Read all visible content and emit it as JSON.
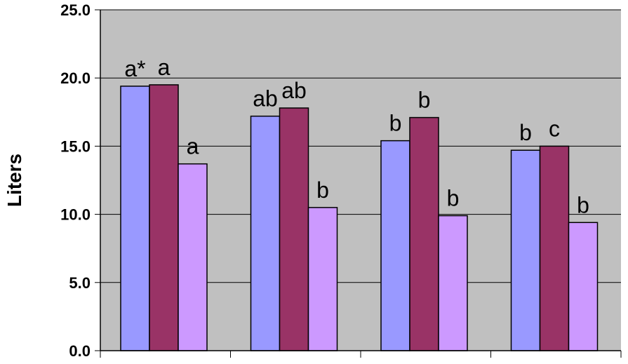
{
  "chart_data": {
    "type": "bar",
    "title": "",
    "xlabel": "",
    "ylabel": "Liters",
    "ylim": [
      0,
      25
    ],
    "yticks": [
      "0.0",
      "5.0",
      "10.0",
      "15.0",
      "20.0",
      "25.0"
    ],
    "grid": true,
    "legend": "none",
    "categories": [
      "",
      "",
      "",
      ""
    ],
    "series": [
      {
        "color": "#9999ff",
        "values": [
          19.4,
          17.2,
          15.4,
          14.7
        ],
        "labels": [
          "a*",
          "ab",
          "b",
          "b"
        ]
      },
      {
        "color": "#993366",
        "values": [
          19.5,
          17.8,
          17.1,
          15.0
        ],
        "labels": [
          "a",
          "ab",
          "b",
          "c"
        ]
      },
      {
        "color": "#cc99ff",
        "values": [
          13.7,
          10.5,
          9.9,
          9.4
        ],
        "labels": [
          "a",
          "b",
          "b",
          "b"
        ]
      }
    ],
    "plot_background": "#c0c0c0",
    "gridline_color": "#000000"
  }
}
